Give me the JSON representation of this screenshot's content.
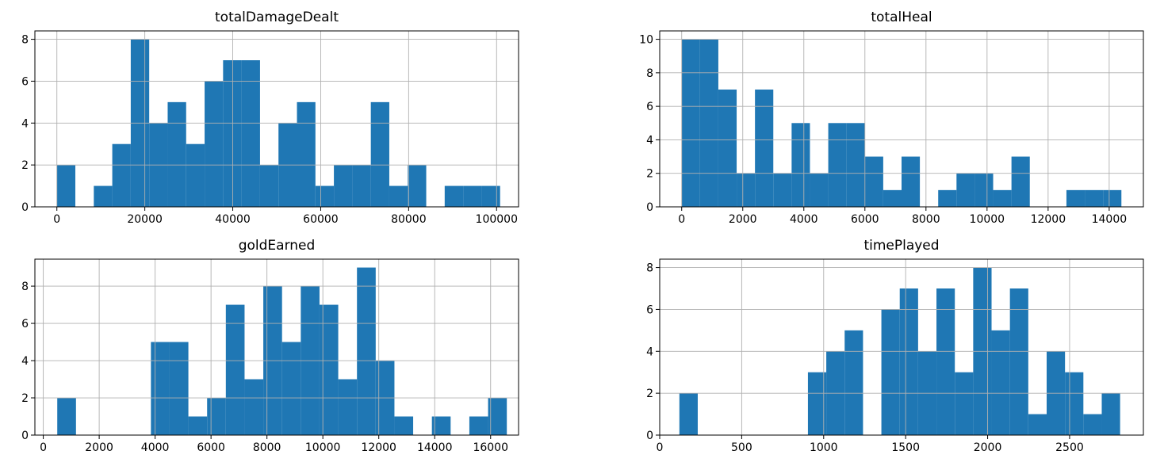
{
  "figure": {
    "bar_color": "#1f77b4",
    "grid_color": "#b0b0b0",
    "axis_color": "#000000"
  },
  "chart_data": [
    {
      "type": "bar",
      "title": "totalDamageDealt",
      "xlim": [
        -5000,
        105000
      ],
      "ylim": [
        0,
        8.4
      ],
      "xticks": [
        0,
        20000,
        40000,
        60000,
        80000,
        100000
      ],
      "xtick_labels": [
        "0",
        "20000",
        "40000",
        "60000",
        "80000",
        "100000"
      ],
      "yticks": [
        0,
        2,
        4,
        6,
        8
      ],
      "ytick_labels": [
        "0",
        "2",
        "4",
        "6",
        "8"
      ],
      "bins": [
        [
          0,
          4200,
          2
        ],
        [
          4200,
          8400,
          0
        ],
        [
          8400,
          12600,
          1
        ],
        [
          12600,
          16800,
          3
        ],
        [
          16800,
          21000,
          8
        ],
        [
          21000,
          25200,
          4
        ],
        [
          25200,
          29400,
          5
        ],
        [
          29400,
          33600,
          3
        ],
        [
          33600,
          37800,
          6
        ],
        [
          37800,
          42000,
          7
        ],
        [
          42000,
          46200,
          7
        ],
        [
          46200,
          50400,
          2
        ],
        [
          50400,
          54600,
          4
        ],
        [
          54600,
          58800,
          5
        ],
        [
          58800,
          63000,
          1
        ],
        [
          63000,
          67200,
          2
        ],
        [
          67200,
          71400,
          2
        ],
        [
          71400,
          75600,
          5
        ],
        [
          75600,
          79800,
          1
        ],
        [
          79800,
          84000,
          2
        ],
        [
          84000,
          88200,
          0
        ],
        [
          88200,
          92400,
          1
        ],
        [
          92400,
          96600,
          1
        ],
        [
          96600,
          100800,
          1
        ]
      ]
    },
    {
      "type": "bar",
      "title": "totalHeal",
      "xlim": [
        -720,
        15120
      ],
      "ylim": [
        0,
        10.5
      ],
      "xticks": [
        0,
        2000,
        4000,
        6000,
        8000,
        10000,
        12000,
        14000
      ],
      "xtick_labels": [
        "0",
        "2000",
        "4000",
        "6000",
        "8000",
        "10000",
        "12000",
        "14000"
      ],
      "yticks": [
        0,
        2,
        4,
        6,
        8,
        10
      ],
      "ytick_labels": [
        "0",
        "2",
        "4",
        "6",
        "8",
        "10"
      ],
      "bins": [
        [
          0,
          600,
          10
        ],
        [
          600,
          1200,
          10
        ],
        [
          1200,
          1800,
          7
        ],
        [
          1800,
          2400,
          2
        ],
        [
          2400,
          3000,
          7
        ],
        [
          3000,
          3600,
          2
        ],
        [
          3600,
          4200,
          5
        ],
        [
          4200,
          4800,
          2
        ],
        [
          4800,
          5400,
          5
        ],
        [
          5400,
          6000,
          5
        ],
        [
          6000,
          6600,
          3
        ],
        [
          6600,
          7200,
          1
        ],
        [
          7200,
          7800,
          3
        ],
        [
          7800,
          8400,
          0
        ],
        [
          8400,
          9000,
          1
        ],
        [
          9000,
          9600,
          2
        ],
        [
          9600,
          10200,
          2
        ],
        [
          10200,
          10800,
          1
        ],
        [
          10800,
          11400,
          3
        ],
        [
          11400,
          12000,
          0
        ],
        [
          12000,
          12600,
          0
        ],
        [
          12600,
          13200,
          1
        ],
        [
          13200,
          13800,
          1
        ],
        [
          13800,
          14400,
          1
        ]
      ]
    },
    {
      "type": "bar",
      "title": "goldEarned",
      "xlim": [
        -300,
        17000
      ],
      "ylim": [
        0,
        9.45
      ],
      "xticks": [
        0,
        2000,
        4000,
        6000,
        8000,
        10000,
        12000,
        14000,
        16000
      ],
      "xtick_labels": [
        "0",
        "2000",
        "4000",
        "6000",
        "8000",
        "10000",
        "12000",
        "14000",
        "16000"
      ],
      "yticks": [
        0,
        2,
        4,
        6,
        8
      ],
      "ytick_labels": [
        "0",
        "2",
        "4",
        "6",
        "8"
      ],
      "bins": [
        [
          500,
          1170,
          2
        ],
        [
          1170,
          1840,
          0
        ],
        [
          1840,
          2510,
          0
        ],
        [
          2510,
          3180,
          0
        ],
        [
          3180,
          3850,
          0
        ],
        [
          3850,
          4520,
          5
        ],
        [
          4520,
          5190,
          5
        ],
        [
          5190,
          5860,
          1
        ],
        [
          5860,
          6530,
          2
        ],
        [
          6530,
          7200,
          7
        ],
        [
          7200,
          7870,
          3
        ],
        [
          7870,
          8540,
          8
        ],
        [
          8540,
          9210,
          5
        ],
        [
          9210,
          9880,
          8
        ],
        [
          9880,
          10550,
          7
        ],
        [
          10550,
          11220,
          3
        ],
        [
          11220,
          11890,
          9
        ],
        [
          11890,
          12560,
          4
        ],
        [
          12560,
          13230,
          1
        ],
        [
          13230,
          13900,
          0
        ],
        [
          13900,
          14570,
          1
        ],
        [
          14570,
          15240,
          0
        ],
        [
          15240,
          15910,
          1
        ],
        [
          15910,
          16580,
          2
        ]
      ]
    },
    {
      "type": "bar",
      "title": "timePlayed",
      "xlim": [
        0,
        2950
      ],
      "ylim": [
        0,
        8.4
      ],
      "xticks": [
        0,
        500,
        1000,
        1500,
        2000,
        2500
      ],
      "xtick_labels": [
        "0",
        "500",
        "1000",
        "1500",
        "2000",
        "2500"
      ],
      "yticks": [
        0,
        2,
        4,
        6,
        8
      ],
      "ytick_labels": [
        "0",
        "2",
        "4",
        "6",
        "8"
      ],
      "bins": [
        [
          120,
          232,
          2
        ],
        [
          232,
          344,
          0
        ],
        [
          344,
          456,
          0
        ],
        [
          456,
          568,
          0
        ],
        [
          568,
          680,
          0
        ],
        [
          680,
          792,
          0
        ],
        [
          792,
          904,
          0
        ],
        [
          904,
          1016,
          3
        ],
        [
          1016,
          1128,
          4
        ],
        [
          1128,
          1240,
          5
        ],
        [
          1240,
          1352,
          0
        ],
        [
          1352,
          1464,
          6
        ],
        [
          1464,
          1576,
          7
        ],
        [
          1576,
          1688,
          4
        ],
        [
          1688,
          1800,
          7
        ],
        [
          1800,
          1912,
          3
        ],
        [
          1912,
          2024,
          8
        ],
        [
          2024,
          2136,
          5
        ],
        [
          2136,
          2248,
          7
        ],
        [
          2248,
          2360,
          1
        ],
        [
          2360,
          2472,
          4
        ],
        [
          2472,
          2584,
          3
        ],
        [
          2584,
          2696,
          1
        ],
        [
          2696,
          2808,
          2
        ]
      ]
    }
  ]
}
